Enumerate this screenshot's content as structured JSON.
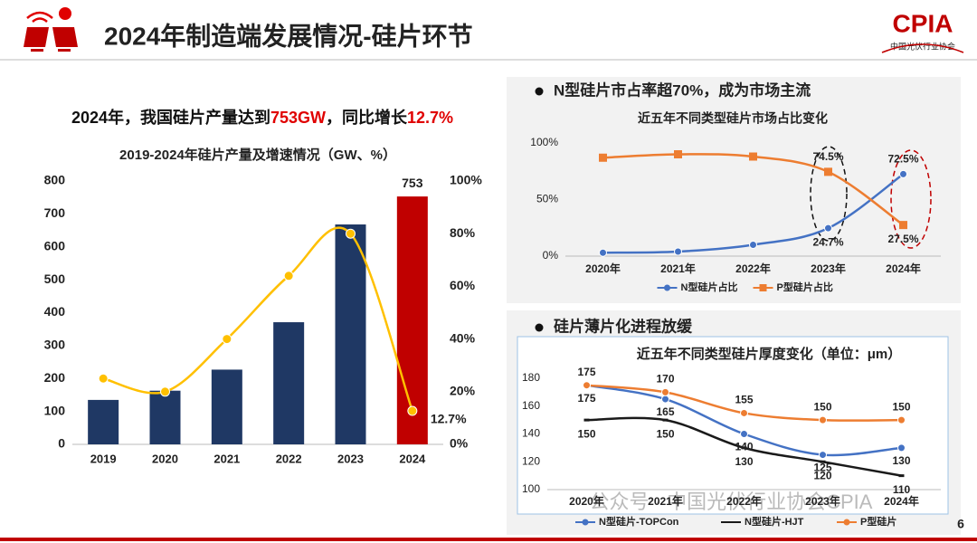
{
  "header": {
    "title": "2024年制造端发展情况-硅片环节",
    "logo": "CPIA",
    "org": "中国光伏行业协会"
  },
  "headline": [
    {
      "text": "2024年，我国硅片产量达到",
      "color": "#111111"
    },
    {
      "text": "753GW",
      "color": "#e00000"
    },
    {
      "text": "，同比增长",
      "color": "#111111"
    },
    {
      "text": "12.7%",
      "color": "#e00000"
    }
  ],
  "chart_data": [
    {
      "type": "combo",
      "title": "2019-2024年硅片产量及增速情况（GW、%）",
      "categories": [
        "2019",
        "2020",
        "2021",
        "2022",
        "2023",
        "2024"
      ],
      "series": [
        {
          "name": "产量",
          "type": "bar",
          "color": "#1f3864",
          "highlight_color": "#c00000",
          "values": [
            135,
            163,
            227,
            371,
            668,
            753
          ],
          "value_labels": [
            null,
            null,
            null,
            null,
            null,
            "753"
          ]
        },
        {
          "name": "增速",
          "type": "line",
          "axis": "y2",
          "color": "#ffc000",
          "smooth": true,
          "values": [
            25,
            20,
            40,
            64,
            80,
            12.7
          ],
          "value_labels": [
            null,
            null,
            null,
            null,
            null,
            "12.7%"
          ]
        }
      ],
      "ylim": [
        0,
        800
      ],
      "yticks": [
        0,
        100,
        200,
        300,
        400,
        500,
        600,
        700,
        800
      ],
      "y2lim": [
        0,
        100
      ],
      "y2ticks": [
        {
          "value": 0,
          "label": "0%"
        },
        {
          "value": 20,
          "label": "20%"
        },
        {
          "value": 40,
          "label": "40%"
        },
        {
          "value": 60,
          "label": "60%"
        },
        {
          "value": 80,
          "label": "80%"
        },
        {
          "value": 100,
          "label": "100%"
        }
      ],
      "grid": false,
      "legend": false
    },
    {
      "type": "line",
      "heading": "N型硅片市占率超70%，成为市场主流",
      "title": "近五年不同类型硅片市场占比变化",
      "categories": [
        "2020年",
        "2021年",
        "2022年",
        "2023年",
        "2024年"
      ],
      "series": [
        {
          "name": "N型硅片占比",
          "color": "#4472c4",
          "marker": "circle",
          "smooth": true,
          "values": [
            3,
            4,
            10,
            24.7,
            72.5
          ],
          "value_labels": [
            null,
            null,
            null,
            "24.7%",
            "72.5%"
          ]
        },
        {
          "name": "P型硅片占比",
          "color": "#ed7d31",
          "marker": "square",
          "smooth": true,
          "values": [
            87,
            90,
            88,
            74.5,
            27.5
          ],
          "value_labels": [
            null,
            null,
            null,
            "74.5%",
            "27.5%"
          ]
        }
      ],
      "ylim": [
        0,
        100
      ],
      "yticks": [
        {
          "value": 0,
          "label": "0%"
        },
        {
          "value": 50,
          "label": "50%"
        },
        {
          "value": 100,
          "label": "100%"
        }
      ],
      "grid": false,
      "legend": "bottom"
    },
    {
      "type": "line",
      "heading": "硅片薄片化进程放缓",
      "title": "近五年不同类型硅片厚度变化（单位：μm）",
      "categories": [
        "2020年",
        "2021年",
        "2022年",
        "2023年",
        "2024年"
      ],
      "series": [
        {
          "name": "N型硅片-TOPCon",
          "color": "#4472c4",
          "marker": "circle",
          "smooth": true,
          "values": [
            175,
            165,
            140,
            125,
            130
          ]
        },
        {
          "name": "N型硅片-HJT",
          "color": "#1a1a1a",
          "marker": "dash",
          "smooth": true,
          "values": [
            150,
            150,
            130,
            120,
            110
          ]
        },
        {
          "name": "P型硅片",
          "color": "#ed7d31",
          "marker": "circle",
          "smooth": true,
          "values": [
            175,
            170,
            155,
            150,
            150
          ]
        }
      ],
      "ylim": [
        100,
        180
      ],
      "yticks": [
        100,
        120,
        140,
        160,
        180
      ],
      "grid": false,
      "legend": "bottom"
    }
  ],
  "footer": {
    "watermark": "公众号 · 中国光伏行业协会CPIA",
    "page": "6"
  }
}
